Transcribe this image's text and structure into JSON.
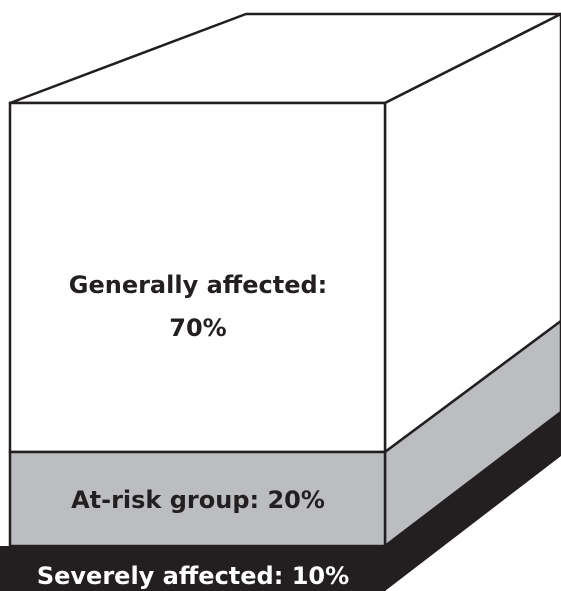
{
  "layers": [
    {
      "id": "generally",
      "label_line1": "Generally affected:",
      "label_line2": "70%",
      "percent": 70,
      "fill": "#ffffff",
      "text_color": "#231f20"
    },
    {
      "id": "at_risk",
      "label": "At-risk group: 20%",
      "percent": 20,
      "fill": "#bcbdc0",
      "text_color": "#231f20"
    },
    {
      "id": "severe",
      "label": "Severely affected: 10%",
      "percent": 10,
      "fill": "#231f20",
      "text_color": "#ffffff"
    }
  ],
  "outline_color": "#231f20"
}
